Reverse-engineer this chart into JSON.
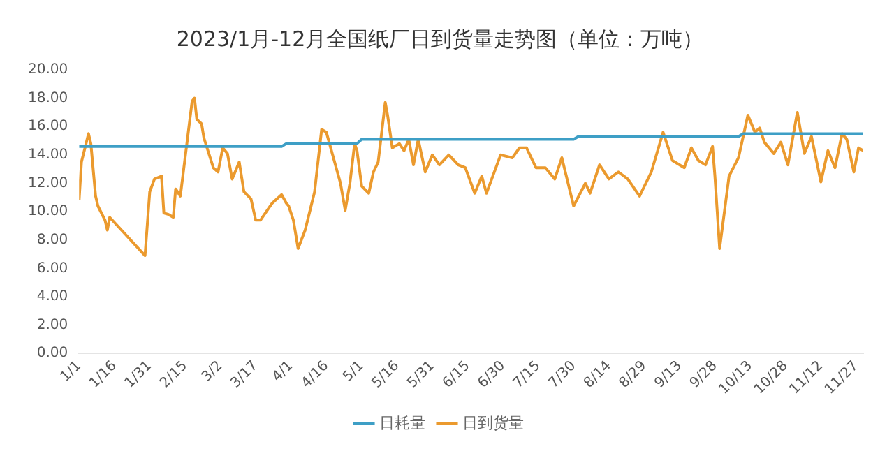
{
  "chart_data": {
    "type": "line",
    "title": "2023/1月-12月全国纸厂日到货量走势图（单位：万吨）",
    "xticks": [
      {
        "value": "--01-01",
        "label": "1/1"
      },
      {
        "value": "--01-16",
        "label": "1/16"
      },
      {
        "value": "--01-31",
        "label": "1/31"
      },
      {
        "value": "--02-15",
        "label": "2/15"
      },
      {
        "value": "--03-02",
        "label": "3/2"
      },
      {
        "value": "--03-17",
        "label": "3/17"
      },
      {
        "value": "--04-01",
        "label": "4/1"
      },
      {
        "value": "--04-16",
        "label": "4/16"
      },
      {
        "value": "--05-01",
        "label": "5/1"
      },
      {
        "value": "--05-16",
        "label": "5/16"
      },
      {
        "value": "--05-31",
        "label": "5/31"
      },
      {
        "value": "--06-15",
        "label": "6/15"
      },
      {
        "value": "--06-30",
        "label": "6/30"
      },
      {
        "value": "--07-15",
        "label": "7/15"
      },
      {
        "value": "--07-30",
        "label": "7/30"
      },
      {
        "value": "--08-14",
        "label": "8/14"
      },
      {
        "value": "--08-29",
        "label": "8/29"
      },
      {
        "value": "--09-13",
        "label": "9/13"
      },
      {
        "value": "--09-28",
        "label": "9/28"
      },
      {
        "value": "--10-13",
        "label": "10/13"
      },
      {
        "value": "--10-28",
        "label": "10/28"
      },
      {
        "value": "--11-12",
        "label": "11/12"
      },
      {
        "value": "--11-27",
        "label": "11/27"
      }
    ],
    "xlim": [
      "--01-01",
      "--11-30"
    ],
    "ylim": [
      0,
      20
    ],
    "yticks": [
      {
        "value": 0,
        "label": "0.00"
      },
      {
        "value": 2,
        "label": "2.00"
      },
      {
        "value": 4,
        "label": "4.00"
      },
      {
        "value": 6,
        "label": "6.00"
      },
      {
        "value": 8,
        "label": "8.00"
      },
      {
        "value": 10,
        "label": "10.00"
      },
      {
        "value": 12,
        "label": "12.00"
      },
      {
        "value": 14,
        "label": "14.00"
      },
      {
        "value": 16,
        "label": "16.00"
      },
      {
        "value": 18,
        "label": "18.00"
      },
      {
        "value": 20,
        "label": "20.00"
      }
    ],
    "grid": false,
    "legend": "bottom",
    "marker": "none",
    "line_style": "solid",
    "series": [
      {
        "name": "日耗量",
        "color": "#3e9fc6",
        "x": [
          "--01-01",
          "--03-28",
          "--03-30",
          "--04-29",
          "--05-01",
          "--07-30",
          "--08-01",
          "--10-08",
          "--10-10",
          "--11-30"
        ],
        "values": [
          14.6,
          14.6,
          14.8,
          14.8,
          15.1,
          15.1,
          15.3,
          15.3,
          15.5,
          15.5
        ]
      },
      {
        "name": "日到货量",
        "color": "#eb9a2e",
        "x": [
          "--01-01",
          "--01-02",
          "--01-05",
          "--01-06",
          "--01-08",
          "--01-09",
          "--01-12",
          "--01-13",
          "--01-14",
          "--01-29",
          "--01-31",
          "--02-02",
          "--02-05",
          "--02-06",
          "--02-08",
          "--02-10",
          "--02-11",
          "--02-13",
          "--02-18",
          "--02-19",
          "--02-20",
          "--02-22",
          "--02-23",
          "--02-27",
          "--03-01",
          "--03-03",
          "--03-05",
          "--03-07",
          "--03-10",
          "--03-12",
          "--03-15",
          "--03-17",
          "--03-19",
          "--03-24",
          "--03-28",
          "--03-30",
          "--03-31",
          "--04-02",
          "--04-04",
          "--04-07",
          "--04-11",
          "--04-14",
          "--04-16",
          "--04-19",
          "--04-22",
          "--04-24",
          "--04-26",
          "--04-28",
          "--04-29",
          "--05-01",
          "--05-04",
          "--05-06",
          "--05-08",
          "--05-11",
          "--05-12",
          "--05-14",
          "--05-17",
          "--05-19",
          "--05-21",
          "--05-23",
          "--05-25",
          "--05-28",
          "--05-31",
          "--06-03",
          "--06-07",
          "--06-11",
          "--06-14",
          "--06-18",
          "--06-21",
          "--06-23",
          "--06-29",
          "--07-04",
          "--07-07",
          "--07-10",
          "--07-14",
          "--07-18",
          "--07-22",
          "--07-25",
          "--07-30",
          "--08-04",
          "--08-06",
          "--08-10",
          "--08-14",
          "--08-18",
          "--08-22",
          "--08-27",
          "--09-01",
          "--09-06",
          "--09-10",
          "--09-15",
          "--09-18",
          "--09-21",
          "--09-24",
          "--09-27",
          "--09-28",
          "--09-30",
          "--10-04",
          "--10-08",
          "--10-12",
          "--10-15",
          "--10-17",
          "--10-19",
          "--10-23",
          "--10-26",
          "--10-29",
          "--11-02",
          "--11-05",
          "--11-08",
          "--11-12",
          "--11-15",
          "--11-18",
          "--11-21",
          "--11-23",
          "--11-26",
          "--11-28",
          "--11-30"
        ],
        "values": [
          10.8,
          13.5,
          15.5,
          14.8,
          11.1,
          10.4,
          9.4,
          8.7,
          9.6,
          6.9,
          11.4,
          12.3,
          12.5,
          9.9,
          9.8,
          9.6,
          11.6,
          11.1,
          17.8,
          18.0,
          16.5,
          16.2,
          15.2,
          13.1,
          12.8,
          14.5,
          14.1,
          12.3,
          13.5,
          11.4,
          10.9,
          9.4,
          9.4,
          10.6,
          11.2,
          10.6,
          10.4,
          9.4,
          7.4,
          8.7,
          11.4,
          15.8,
          15.6,
          13.8,
          12.0,
          10.1,
          12.0,
          14.8,
          14.3,
          11.8,
          11.3,
          12.8,
          13.5,
          17.7,
          16.8,
          14.5,
          14.8,
          14.3,
          15.1,
          13.3,
          15.1,
          12.8,
          14.0,
          13.3,
          14.0,
          13.3,
          13.1,
          11.3,
          12.5,
          11.3,
          14.0,
          13.8,
          14.5,
          14.5,
          13.1,
          13.1,
          12.3,
          13.8,
          10.4,
          12.0,
          11.3,
          13.3,
          12.3,
          12.8,
          12.3,
          11.1,
          12.8,
          15.6,
          13.6,
          13.1,
          14.5,
          13.6,
          13.3,
          14.6,
          12.5,
          7.4,
          12.5,
          13.8,
          16.8,
          15.6,
          15.9,
          14.9,
          14.1,
          14.9,
          13.3,
          17.0,
          14.1,
          15.3,
          12.1,
          14.3,
          13.1,
          15.5,
          15.1,
          12.8,
          14.5,
          14.3
        ]
      }
    ]
  }
}
